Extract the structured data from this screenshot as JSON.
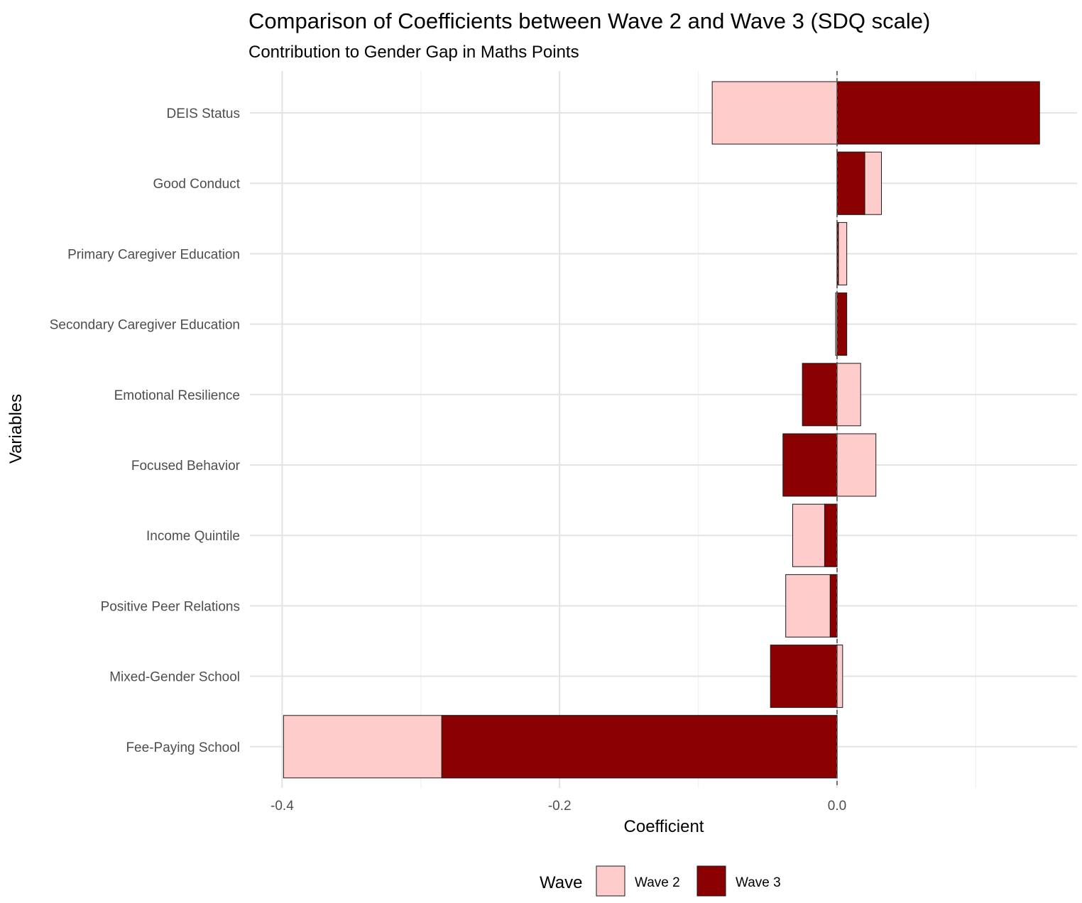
{
  "chart_data": {
    "type": "bar",
    "orientation": "horizontal",
    "overlay": true,
    "title": "Comparison of Coefficients between Wave 2 and Wave 3 (SDQ scale)",
    "subtitle": "Contribution to Gender Gap in Maths Points",
    "xlabel": "Coefficient",
    "ylabel": "Variables",
    "xlim": [
      -0.4,
      0.17
    ],
    "x_ticks": [
      {
        "value": -0.4,
        "label": "-0.4"
      },
      {
        "value": -0.2,
        "label": "-0.2"
      },
      {
        "value": 0.0,
        "label": "0.0"
      }
    ],
    "reference_line": 0,
    "grid": true,
    "legend_position": "bottom",
    "legend_title": "Wave",
    "categories": [
      "DEIS Status",
      "Good Conduct",
      "Primary Caregiver Education",
      "Secondary Caregiver Education",
      "Emotional Resilience",
      "Focused Behavior",
      "Income Quintile",
      "Positive Peer Relations",
      "Mixed-Gender School",
      "Fee-Paying School"
    ],
    "series": [
      {
        "name": "Wave 2",
        "color": "#ffcccc",
        "values": [
          -0.09,
          0.032,
          0.007,
          -0.001,
          0.017,
          0.028,
          -0.032,
          -0.037,
          0.004,
          -0.399
        ]
      },
      {
        "name": "Wave 3",
        "color": "#8b0000",
        "values": [
          0.146,
          0.02,
          0.001,
          0.007,
          -0.025,
          -0.039,
          -0.009,
          -0.005,
          -0.048,
          -0.285
        ]
      }
    ]
  }
}
